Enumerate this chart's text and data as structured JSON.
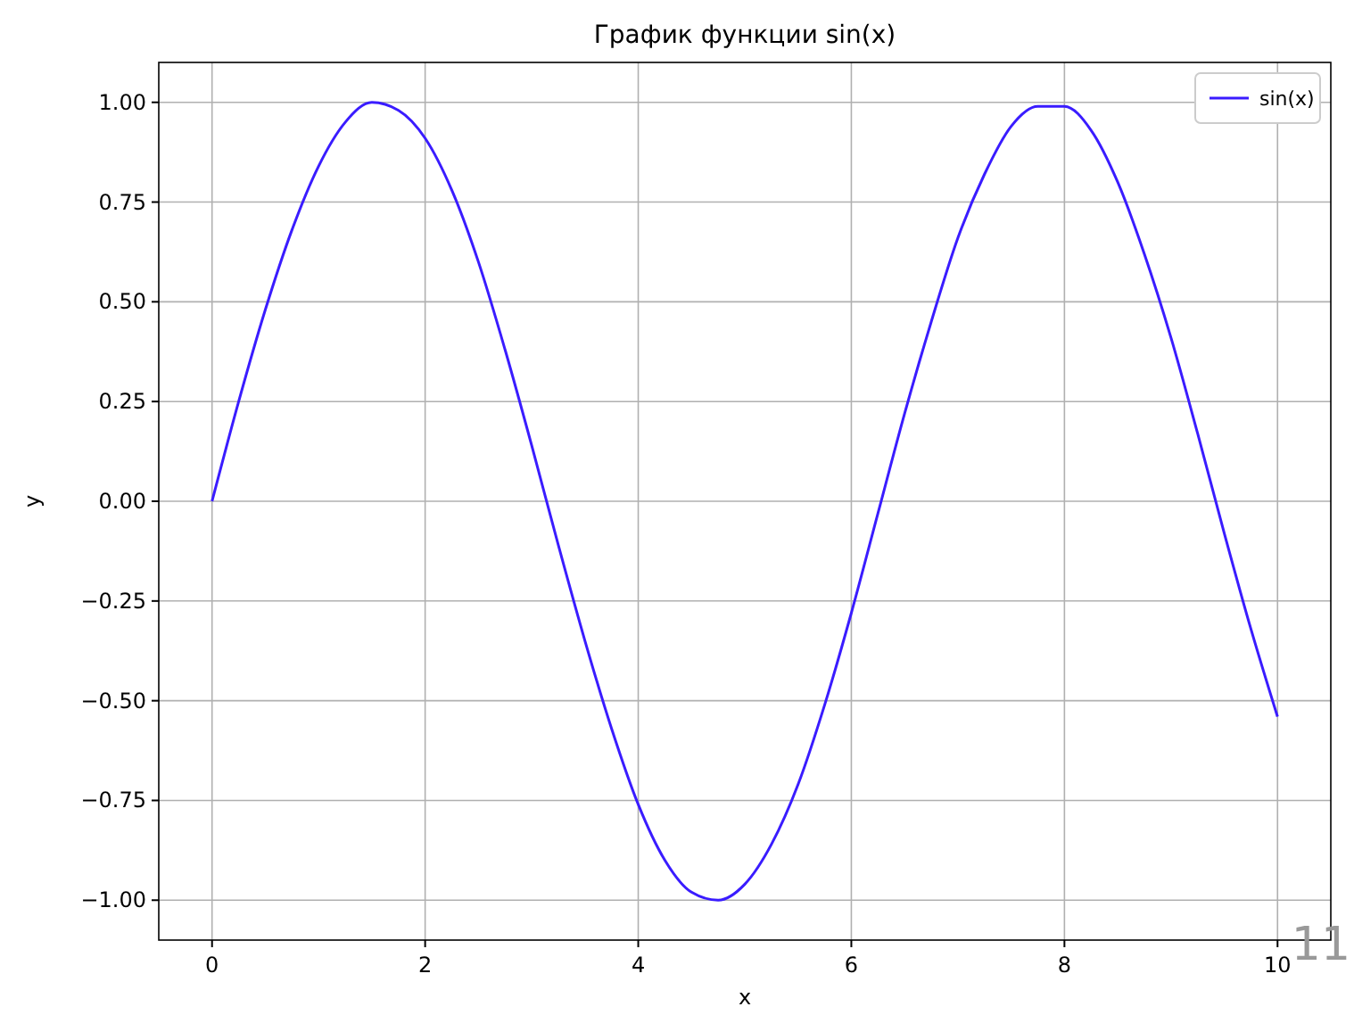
{
  "chart_data": {
    "type": "line",
    "title": "График функции sin(x)",
    "xlabel": "x",
    "ylabel": "y",
    "x": [
      0,
      0.25,
      0.5,
      0.75,
      1,
      1.25,
      1.5,
      1.75,
      2,
      2.25,
      2.5,
      2.75,
      3,
      3.25,
      3.5,
      3.75,
      4,
      4.25,
      4.5,
      4.75,
      5,
      5.25,
      5.5,
      5.75,
      6,
      6.25,
      6.5,
      6.75,
      7,
      7.25,
      7.5,
      7.75,
      8,
      8.25,
      8.5,
      8.75,
      9,
      9.25,
      9.5,
      9.75,
      10
    ],
    "series": [
      {
        "name": "sin(x)",
        "color": "#3a1cff",
        "values": [
          0,
          0.25,
          0.48,
          0.68,
          0.84,
          0.95,
          1.0,
          0.98,
          0.91,
          0.78,
          0.6,
          0.38,
          0.14,
          -0.11,
          -0.35,
          -0.57,
          -0.76,
          -0.9,
          -0.98,
          -1.0,
          -0.96,
          -0.86,
          -0.71,
          -0.51,
          -0.28,
          -0.03,
          0.22,
          0.45,
          0.66,
          0.82,
          0.94,
          0.99,
          0.99,
          0.93,
          0.8,
          0.62,
          0.41,
          0.17,
          -0.08,
          -0.32,
          -0.54
        ]
      }
    ],
    "xlim": [
      -0.5,
      10.5
    ],
    "ylim": [
      -1.1,
      1.1
    ],
    "xticks": [
      0,
      2,
      4,
      6,
      8,
      10
    ],
    "yticks": [
      {
        "value": -1,
        "label": "−1.00"
      },
      {
        "value": -0.75,
        "label": "−0.75"
      },
      {
        "value": -0.5,
        "label": "−0.50"
      },
      {
        "value": -0.25,
        "label": "−0.25"
      },
      {
        "value": 0,
        "label": "0.00"
      },
      {
        "value": 0.25,
        "label": "0.25"
      },
      {
        "value": 0.5,
        "label": "0.50"
      },
      {
        "value": 0.75,
        "label": "0.75"
      },
      {
        "value": 1,
        "label": "1.00"
      }
    ],
    "grid": true,
    "legend": "top right",
    "annotations": [
      "11"
    ]
  }
}
